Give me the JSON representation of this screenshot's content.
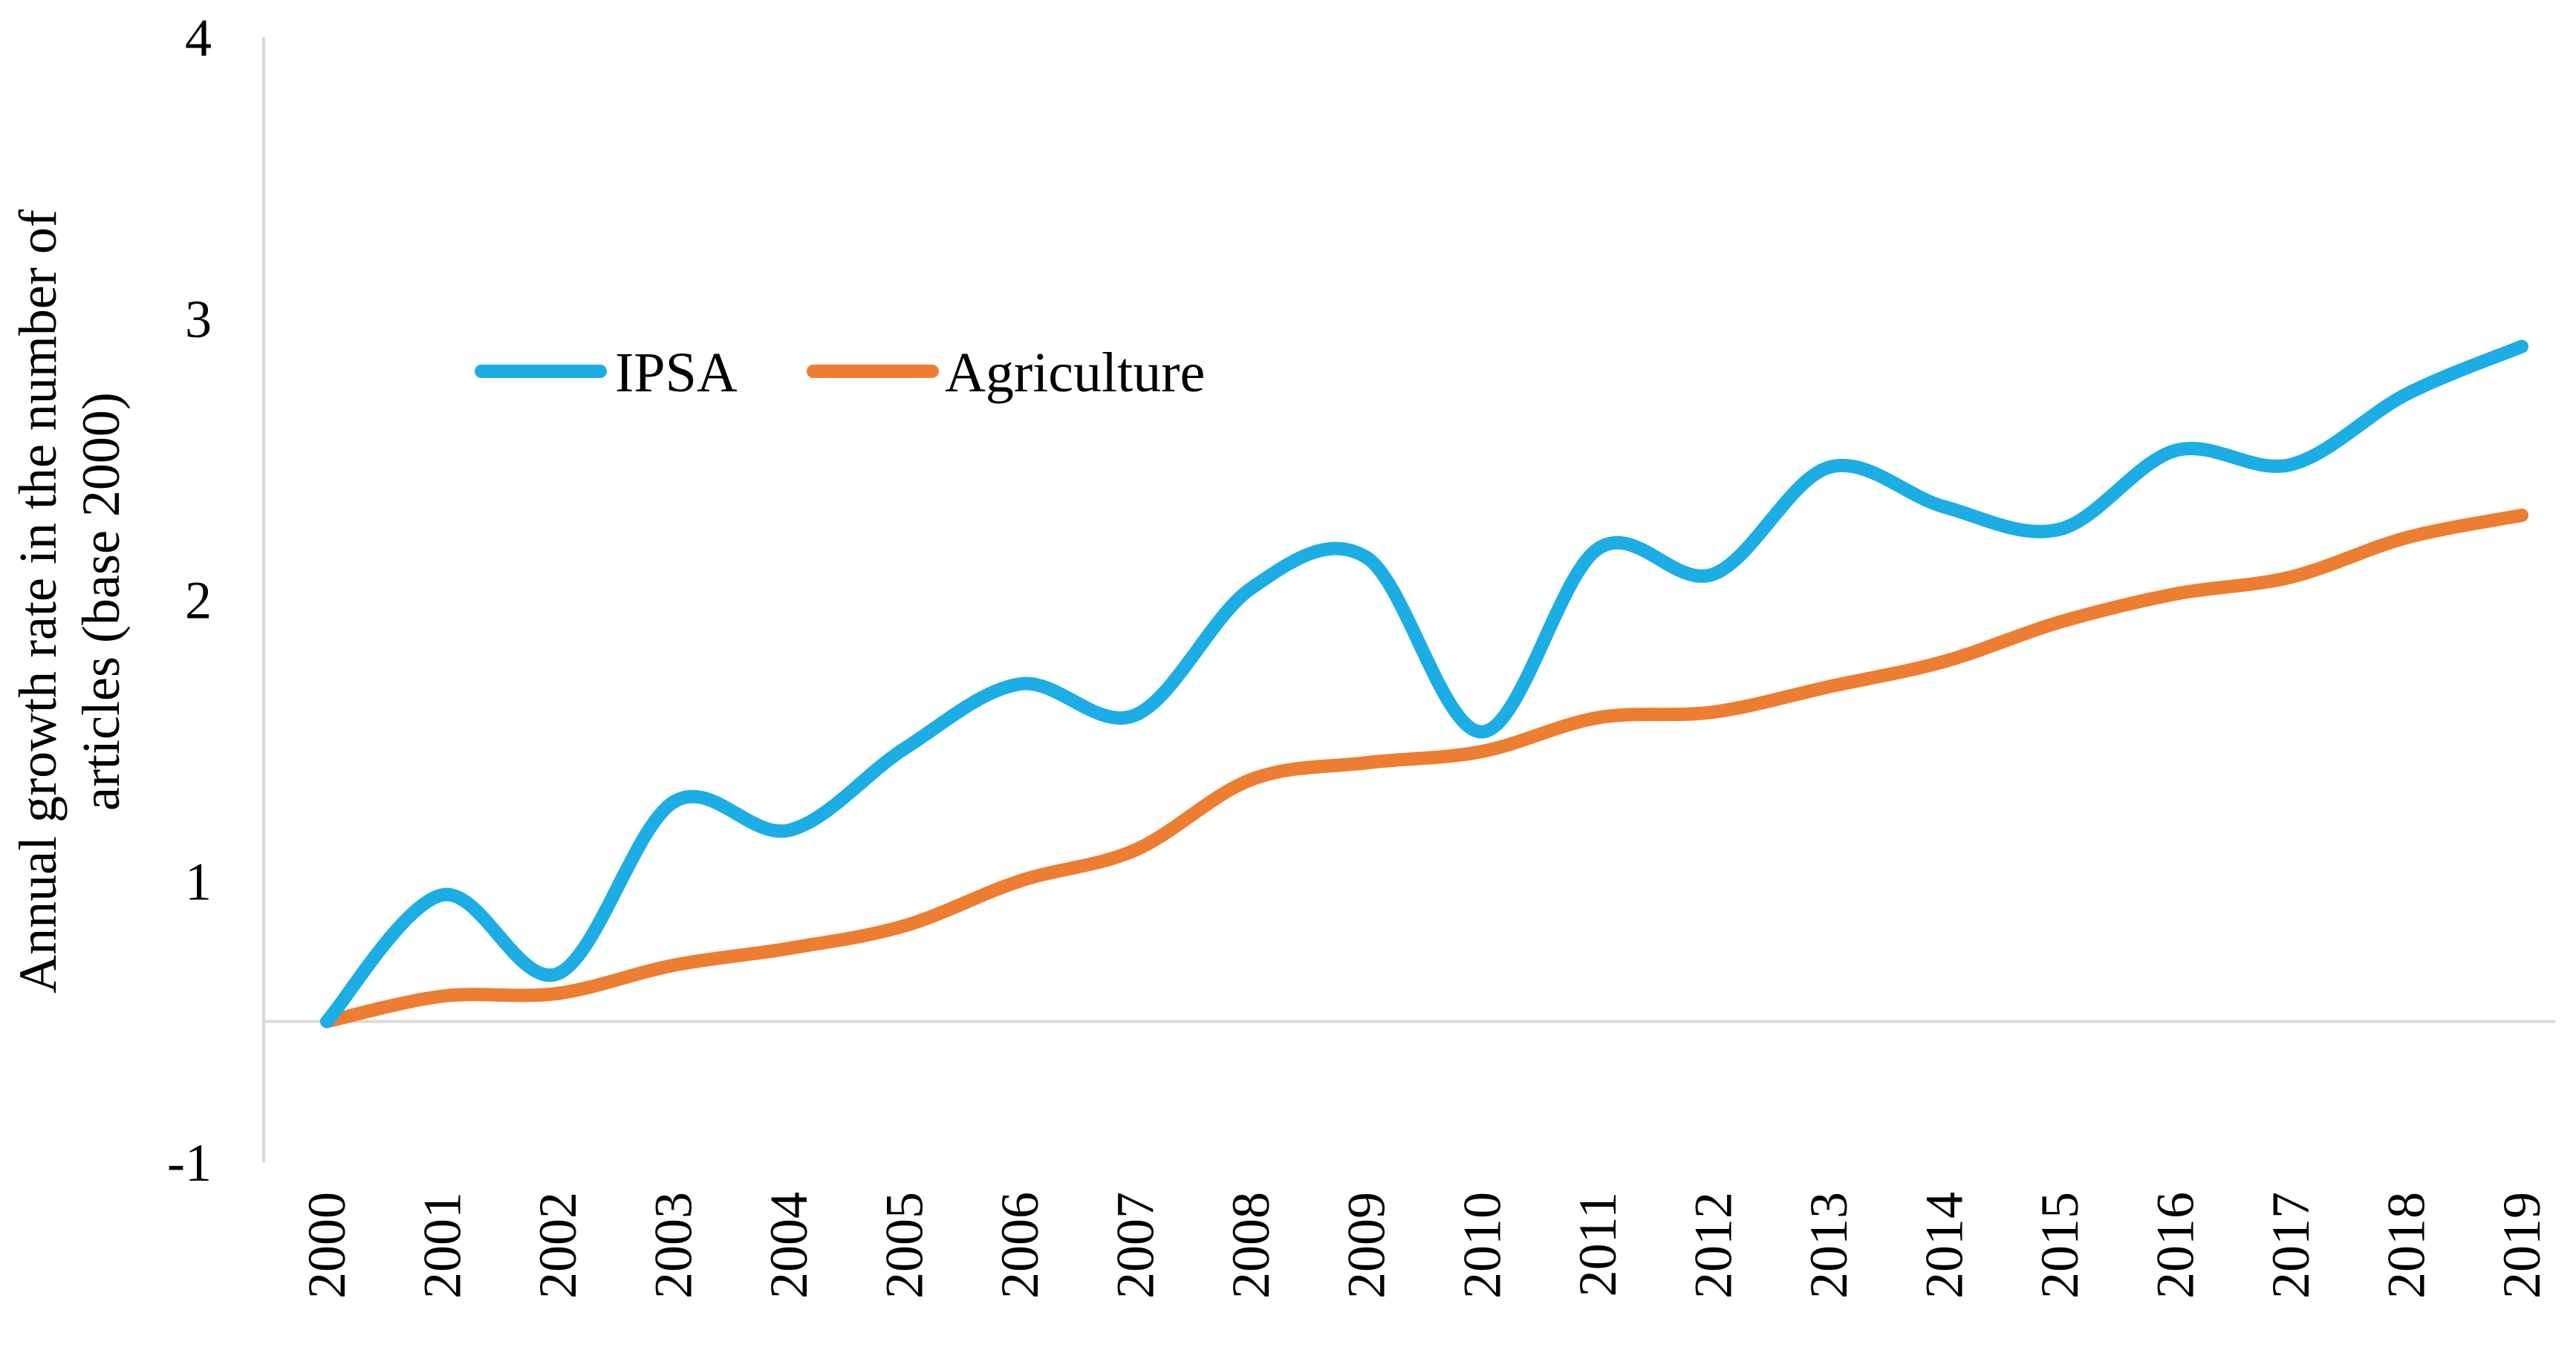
{
  "chart_data": {
    "type": "line",
    "title": "",
    "xlabel": "",
    "ylabel_lines": [
      "Annual growth rate in the number of",
      "articles (base 2000)"
    ],
    "categories": [
      "2000",
      "2001",
      "2002",
      "2003",
      "2004",
      "2005",
      "2006",
      "2007",
      "2008",
      "2009",
      "2010",
      "2011",
      "2012",
      "2013",
      "2014",
      "2015",
      "2016",
      "2017",
      "2018",
      "2019"
    ],
    "series": [
      {
        "name": "IPSA",
        "color": "#1CADE4",
        "values": [
          0.0,
          0.45,
          0.17,
          0.78,
          0.68,
          0.97,
          1.2,
          1.09,
          1.54,
          1.65,
          1.03,
          1.68,
          1.59,
          1.97,
          1.83,
          1.75,
          2.03,
          1.98,
          2.23,
          2.4
        ]
      },
      {
        "name": "Agriculture",
        "color": "#ED7D31",
        "values": [
          0.0,
          0.09,
          0.1,
          0.2,
          0.26,
          0.34,
          0.5,
          0.61,
          0.86,
          0.92,
          0.96,
          1.08,
          1.1,
          1.19,
          1.28,
          1.42,
          1.52,
          1.58,
          1.72,
          1.8
        ]
      }
    ],
    "ylim": [
      -0.5,
      3.5
    ],
    "yticks": [
      {
        "value": -0.5,
        "label": "-1"
      },
      {
        "value": 0.5,
        "label": "1"
      },
      {
        "value": 1.5,
        "label": "2"
      },
      {
        "value": 2.5,
        "label": "3"
      },
      {
        "value": 3.5,
        "label": "4"
      }
    ],
    "zero_line": 0,
    "grid": false,
    "legend_position": "top-left"
  }
}
